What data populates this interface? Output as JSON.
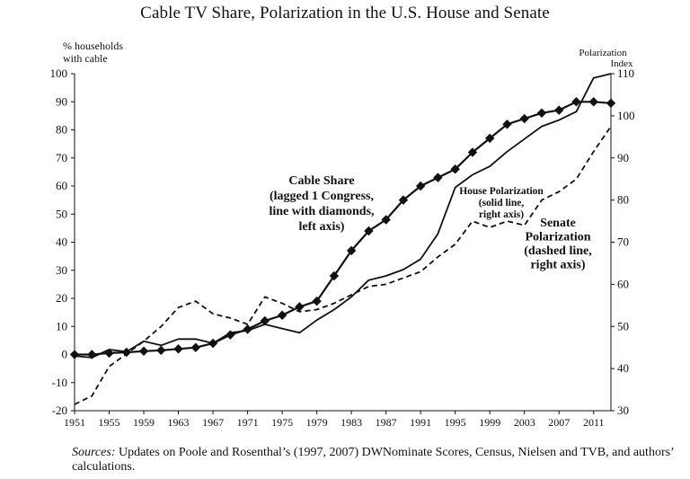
{
  "chart_data": {
    "type": "line",
    "title": "Cable TV Share, Polarization in the U.S. House and Senate",
    "left_axis": {
      "label_lines": [
        "% households",
        "with cable"
      ],
      "ylim": [
        -20,
        100
      ],
      "ticks": [
        -20,
        -10,
        0,
        10,
        20,
        30,
        40,
        50,
        60,
        70,
        80,
        90,
        100
      ]
    },
    "right_axis": {
      "label_lines": [
        "Polarization",
        "Index"
      ],
      "ylim": [
        30,
        110
      ],
      "ticks": [
        30,
        40,
        50,
        60,
        70,
        80,
        90,
        100,
        110
      ]
    },
    "x_axis": {
      "xlim": [
        1951,
        2013
      ],
      "tick_labels": [
        "1951",
        "1955",
        "1959",
        "1963",
        "1967",
        "1971",
        "1975",
        "1979",
        "1983",
        "1987",
        "1991",
        "1995",
        "1999",
        "2003",
        "2007",
        "2011"
      ]
    },
    "grid": false,
    "series": [
      {
        "axis": "left",
        "style": "line-with-diamonds",
        "x": [
          1951,
          1953,
          1955,
          1957,
          1959,
          1961,
          1963,
          1965,
          1967,
          1969,
          1971,
          1973,
          1975,
          1977,
          1979,
          1981,
          1983,
          1985,
          1987,
          1989,
          1991,
          1993,
          1995,
          1997,
          1999,
          2001,
          2003,
          2005,
          2007,
          2009,
          2011,
          2013
        ],
        "y": [
          0,
          0,
          0.5,
          0.8,
          1.2,
          1.5,
          2,
          2.5,
          4,
          7,
          9,
          12,
          14,
          17,
          19,
          28,
          37,
          44,
          48,
          55,
          60,
          63,
          66,
          72,
          77,
          82,
          84,
          86,
          87,
          90,
          90,
          89.5
        ]
      },
      {
        "axis": "right",
        "style": "solid",
        "x": [
          1951,
          1953,
          1955,
          1957,
          1959,
          1961,
          1963,
          1965,
          1967,
          1969,
          1971,
          1973,
          1975,
          1977,
          1979,
          1981,
          1983,
          1985,
          1987,
          1989,
          1991,
          1993,
          1995,
          1997,
          1999,
          2001,
          2003,
          2005,
          2007,
          2009,
          2011,
          2013
        ],
        "y": [
          43,
          42.6,
          44.5,
          44,
          46.5,
          45.5,
          47,
          47,
          46,
          48.5,
          49,
          50.5,
          49.5,
          48.5,
          51.5,
          54,
          57,
          61,
          62,
          63.5,
          66,
          72,
          83,
          86,
          88,
          91.5,
          94.5,
          97.5,
          99,
          101,
          109,
          110
        ]
      },
      {
        "axis": "right",
        "style": "dashed",
        "x": [
          1951,
          1953,
          1955,
          1957,
          1959,
          1961,
          1963,
          1965,
          1967,
          1969,
          1971,
          1973,
          1975,
          1977,
          1979,
          1981,
          1983,
          1985,
          1987,
          1989,
          1991,
          1993,
          1995,
          1997,
          1999,
          2001,
          2003,
          2005,
          2007,
          2009,
          2011,
          2013
        ],
        "y": [
          31.5,
          33.5,
          40.5,
          43.5,
          46.5,
          50,
          54.5,
          56,
          53,
          52,
          50.5,
          57,
          55.5,
          53.5,
          54,
          55.5,
          57.5,
          59.5,
          60,
          61.5,
          63,
          66.5,
          69.5,
          75,
          73.5,
          75,
          74,
          80,
          82,
          85,
          91.5,
          97.5
        ]
      }
    ],
    "annotations": [
      {
        "id": "cable",
        "lines": [
          "Cable Share",
          "(lagged 1 Congress,",
          "line with diamonds,",
          "left axis)"
        ]
      },
      {
        "id": "house",
        "lines": [
          "House Polarization",
          "(solid line,",
          "right axis)"
        ]
      },
      {
        "id": "senate",
        "lines": [
          "Senate",
          "Polarization",
          "(dashed line,",
          "right axis)"
        ]
      }
    ]
  },
  "source_note": {
    "label": "Sources:",
    "text": " Updates on Poole and Rosenthal’s (1997, 2007) DWNominate Scores, Census, Nielsen and TVB, and authors’ calculations."
  }
}
